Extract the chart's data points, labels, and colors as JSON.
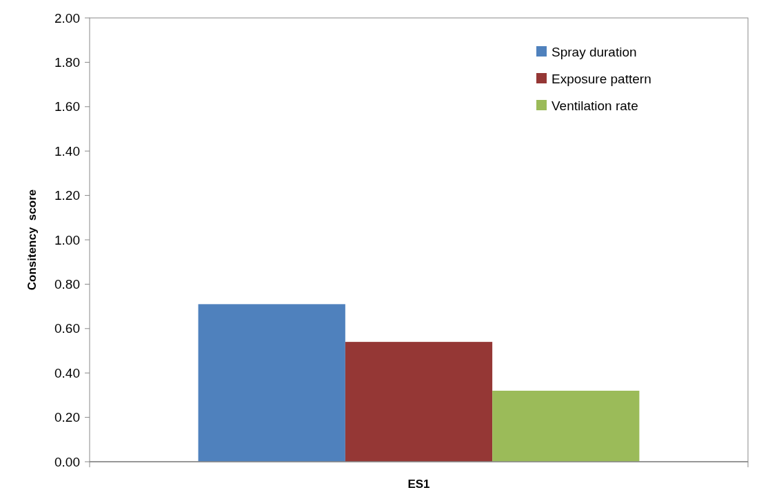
{
  "chart_data": {
    "type": "bar",
    "ylabel": "Consitency  score",
    "categories": [
      "ES1"
    ],
    "series": [
      {
        "name": "Spray duration",
        "color": "#4f81bd",
        "values": [
          0.71
        ]
      },
      {
        "name": "Exposure pattern",
        "color": "#953735",
        "values": [
          0.54
        ]
      },
      {
        "name": "Ventilation rate",
        "color": "#9bbb59",
        "values": [
          0.32
        ]
      }
    ],
    "ylim": [
      0,
      2
    ],
    "yticks": [
      {
        "value": 0,
        "label": "0.00"
      },
      {
        "value": 0.2,
        "label": "0.20"
      },
      {
        "value": 0.4,
        "label": "0.40"
      },
      {
        "value": 0.6,
        "label": "0.60"
      },
      {
        "value": 0.8,
        "label": "0.80"
      },
      {
        "value": 1,
        "label": "1.00"
      },
      {
        "value": 1.2,
        "label": "1.20"
      },
      {
        "value": 1.4,
        "label": "1.40"
      },
      {
        "value": 1.6,
        "label": "1.60"
      },
      {
        "value": 1.8,
        "label": "1.80"
      },
      {
        "value": 2,
        "label": "2.00"
      }
    ],
    "legend": "top right",
    "grid": false
  }
}
